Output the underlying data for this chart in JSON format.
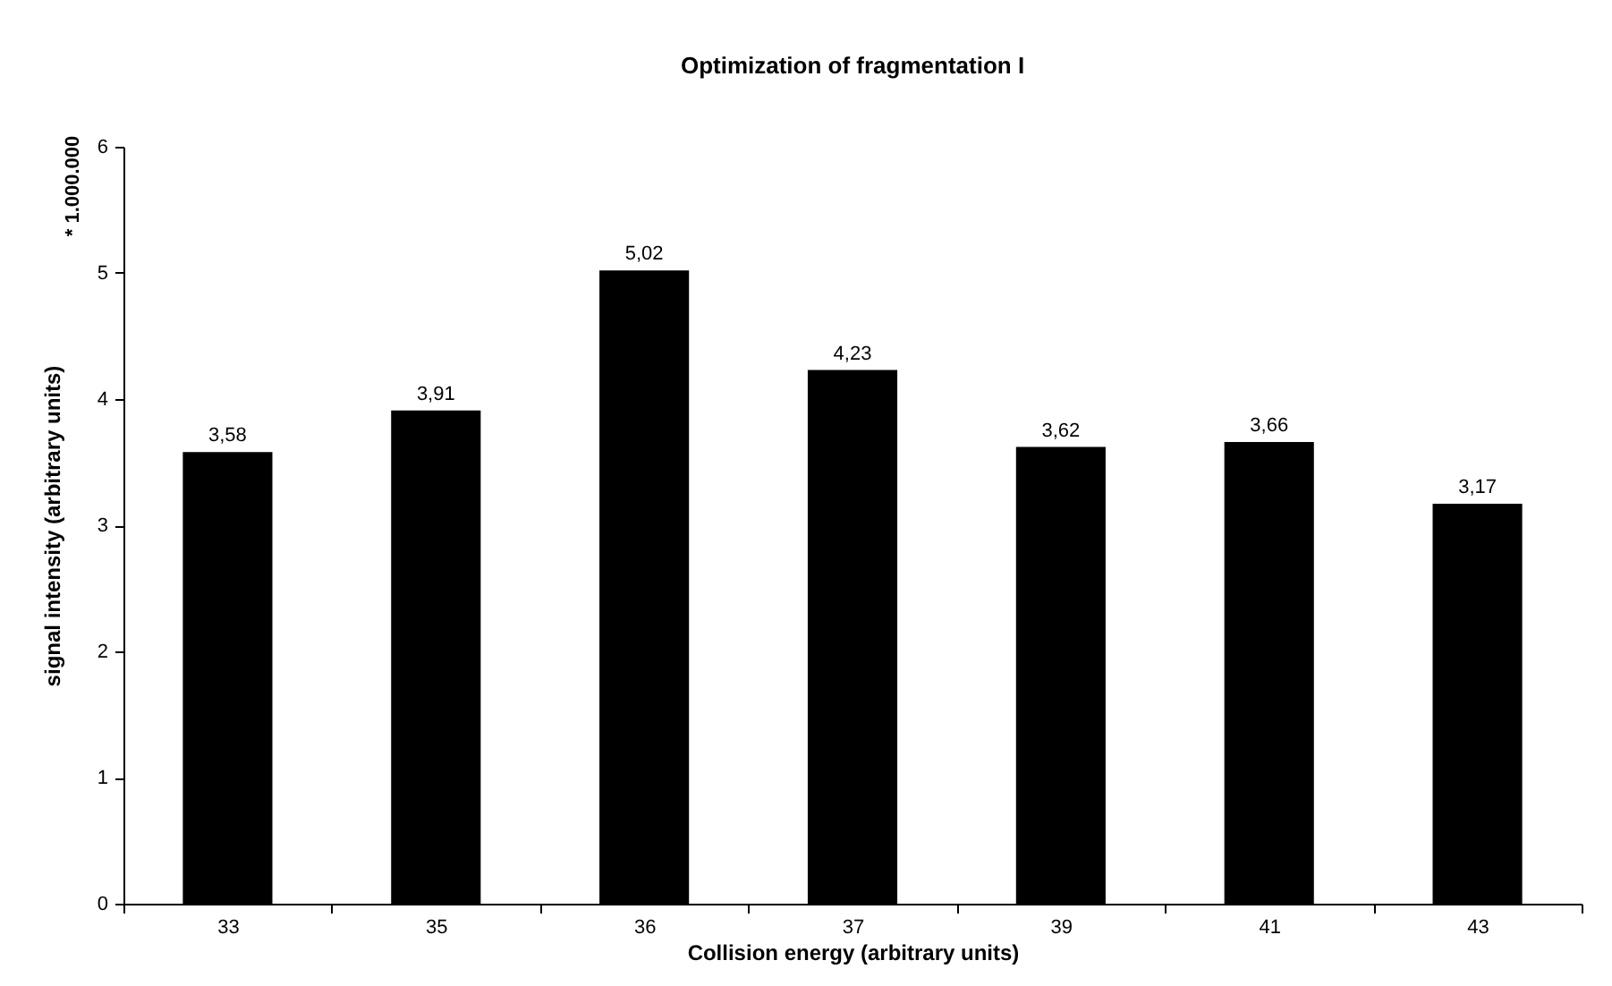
{
  "chart_data": {
    "type": "bar",
    "title": "Optimization of fragmentation I",
    "xlabel": "Collision energy (arbitrary units)",
    "ylabel": "signal intensity (arbitrary units)",
    "categories": [
      "33",
      "35",
      "36",
      "37",
      "39",
      "41",
      "43"
    ],
    "series": [
      {
        "color": "#000000",
        "values": [
          3.58,
          3.91,
          5.02,
          4.23,
          3.62,
          3.66,
          3.17
        ]
      }
    ],
    "value_labels": [
      "3,58",
      "3,91",
      "5,02",
      "4,23",
      "3,62",
      "3,66",
      "3,17"
    ],
    "ylim": [
      0,
      6
    ],
    "yticks": [
      0,
      1,
      2,
      3,
      4,
      5,
      6
    ],
    "grid": false,
    "annotations": [
      "* 1.000.000"
    ]
  }
}
